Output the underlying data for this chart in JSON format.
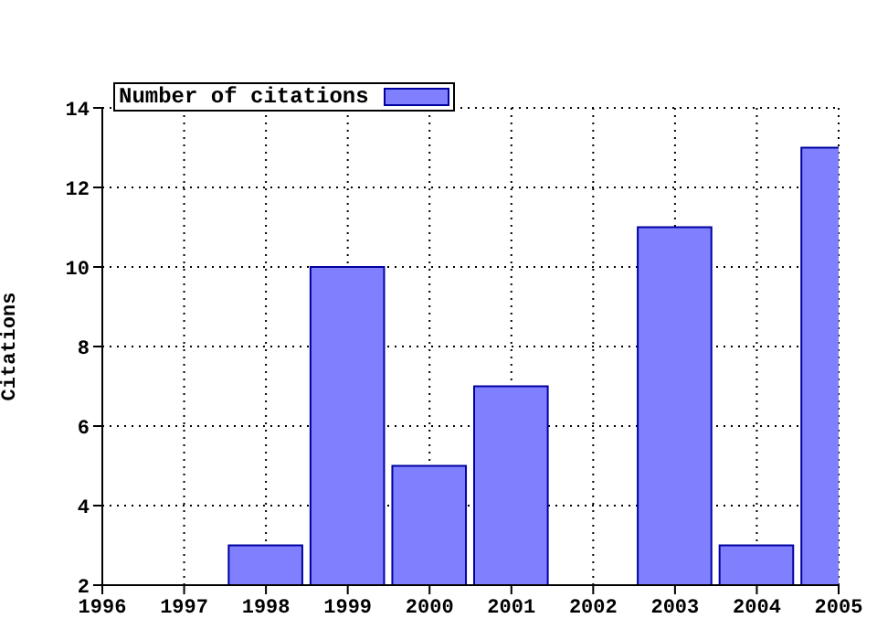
{
  "chart_data": {
    "type": "bar",
    "ylabel": "Citations",
    "x": [
      1998,
      1999,
      2000,
      2001,
      2003,
      2004,
      2005
    ],
    "series": [
      {
        "name": "Number of citations",
        "color": "#8080ff",
        "values": [
          3,
          10,
          5,
          7,
          11,
          3,
          13
        ]
      }
    ],
    "xlim": [
      1996,
      2005
    ],
    "xticks": [
      1996,
      1997,
      1998,
      1999,
      2000,
      2001,
      2002,
      2003,
      2004,
      2005
    ],
    "ylim": [
      2,
      14
    ],
    "yticks": [
      2,
      4,
      6,
      8,
      10,
      12,
      14
    ],
    "grid": true,
    "legend": "top left"
  }
}
